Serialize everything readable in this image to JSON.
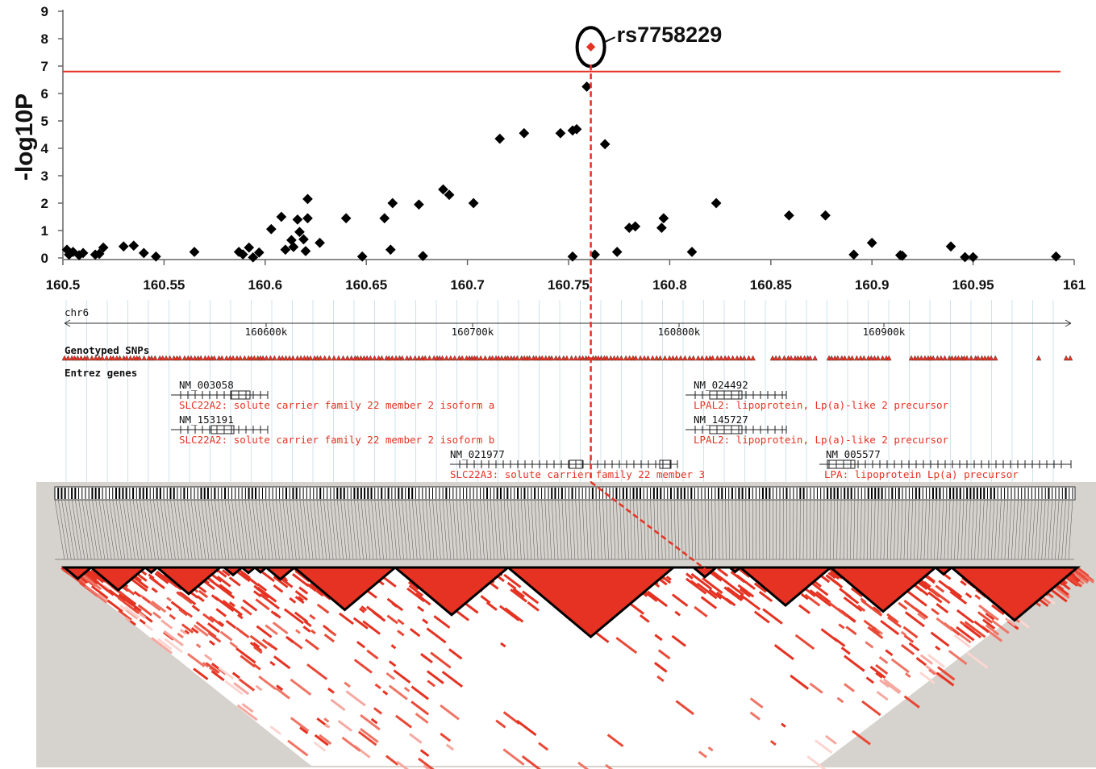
{
  "chart_data": {
    "type": "scatter",
    "ylabel": "-log10P",
    "xlim": [
      160.5,
      161
    ],
    "ylim": [
      0,
      9
    ],
    "x_ticks": [
      "160.5",
      "160.55",
      "160.6",
      "160.65",
      "160.7",
      "160.75",
      "160.8",
      "160.85",
      "160.9",
      "160.95",
      "161"
    ],
    "y_ticks": [
      "0",
      "1",
      "2",
      "3",
      "4",
      "5",
      "6",
      "7",
      "8",
      "9"
    ],
    "threshold": 6.8,
    "highlight": {
      "label": "rs7758229",
      "x": 160.761,
      "y": 7.7
    },
    "series": [
      {
        "color": "#000000",
        "points": [
          [
            160.502,
            0.3
          ],
          [
            160.503,
            0.12
          ],
          [
            160.505,
            0.22
          ],
          [
            160.508,
            0.1
          ],
          [
            160.51,
            0.18
          ],
          [
            160.516,
            0.12
          ],
          [
            160.518,
            0.15
          ],
          [
            160.52,
            0.38
          ],
          [
            160.53,
            0.42
          ],
          [
            160.535,
            0.45
          ],
          [
            160.54,
            0.18
          ],
          [
            160.546,
            0.05
          ],
          [
            160.565,
            0.22
          ],
          [
            160.587,
            0.22
          ],
          [
            160.589,
            0.13
          ],
          [
            160.592,
            0.38
          ],
          [
            160.594,
            0.02
          ],
          [
            160.597,
            0.2
          ],
          [
            160.603,
            1.05
          ],
          [
            160.608,
            1.5
          ],
          [
            160.61,
            0.3
          ],
          [
            160.613,
            0.65
          ],
          [
            160.614,
            0.4
          ],
          [
            160.616,
            1.4
          ],
          [
            160.617,
            0.95
          ],
          [
            160.619,
            0.68
          ],
          [
            160.62,
            0.25
          ],
          [
            160.621,
            1.45
          ],
          [
            160.621,
            2.15
          ],
          [
            160.627,
            0.55
          ],
          [
            160.64,
            1.45
          ],
          [
            160.648,
            0.05
          ],
          [
            160.659,
            1.45
          ],
          [
            160.662,
            0.3
          ],
          [
            160.663,
            2.0
          ],
          [
            160.676,
            1.95
          ],
          [
            160.678,
            0.07
          ],
          [
            160.688,
            2.5
          ],
          [
            160.691,
            2.3
          ],
          [
            160.703,
            2.0
          ],
          [
            160.716,
            4.35
          ],
          [
            160.728,
            4.55
          ],
          [
            160.746,
            4.55
          ],
          [
            160.752,
            4.65
          ],
          [
            160.754,
            4.7
          ],
          [
            160.752,
            0.05
          ],
          [
            160.759,
            6.25
          ],
          [
            160.763,
            0.12
          ],
          [
            160.768,
            4.15
          ],
          [
            160.774,
            0.22
          ],
          [
            160.78,
            1.1
          ],
          [
            160.783,
            1.15
          ],
          [
            160.796,
            1.1
          ],
          [
            160.797,
            1.45
          ],
          [
            160.811,
            0.22
          ],
          [
            160.823,
            2.0
          ],
          [
            160.859,
            1.55
          ],
          [
            160.877,
            1.55
          ],
          [
            160.891,
            0.12
          ],
          [
            160.9,
            0.55
          ],
          [
            160.914,
            0.1
          ],
          [
            160.915,
            0.08
          ],
          [
            160.939,
            0.42
          ],
          [
            160.946,
            0.03
          ],
          [
            160.95,
            0.03
          ],
          [
            160.991,
            0.05
          ]
        ]
      }
    ]
  },
  "genome": {
    "chromosome": "chr6",
    "ticks": [
      "160600k",
      "160700k",
      "160800k",
      "160900k"
    ],
    "snps_track": "Genotyped SNPs",
    "genes_track": "Entrez genes",
    "genes": [
      {
        "accession": "NM_003058",
        "name": "SLC22A2: solute carrier family 22 member 2 isoform a"
      },
      {
        "accession": "NM_153191",
        "name": "SLC22A2: solute carrier family 22 member 2 isoform b"
      },
      {
        "accession": "NM_021977",
        "name": "SLC22A3: solute carrier family 22 member 3"
      },
      {
        "accession": "NM_024492",
        "name": "LPAL2: lipoprotein, Lp(a)-like 2 precursor"
      },
      {
        "accession": "NM_145727",
        "name": "LPAL2: lipoprotein, Lp(a)-like 2 precursor"
      },
      {
        "accession": "NM_005577",
        "name": "LPA: lipoprotein Lp(a) precursor"
      }
    ]
  },
  "colors": {
    "highlight": "#e53222",
    "points": "#000000",
    "ld": "#e53222",
    "panel_bg": "#d6d2cd"
  }
}
